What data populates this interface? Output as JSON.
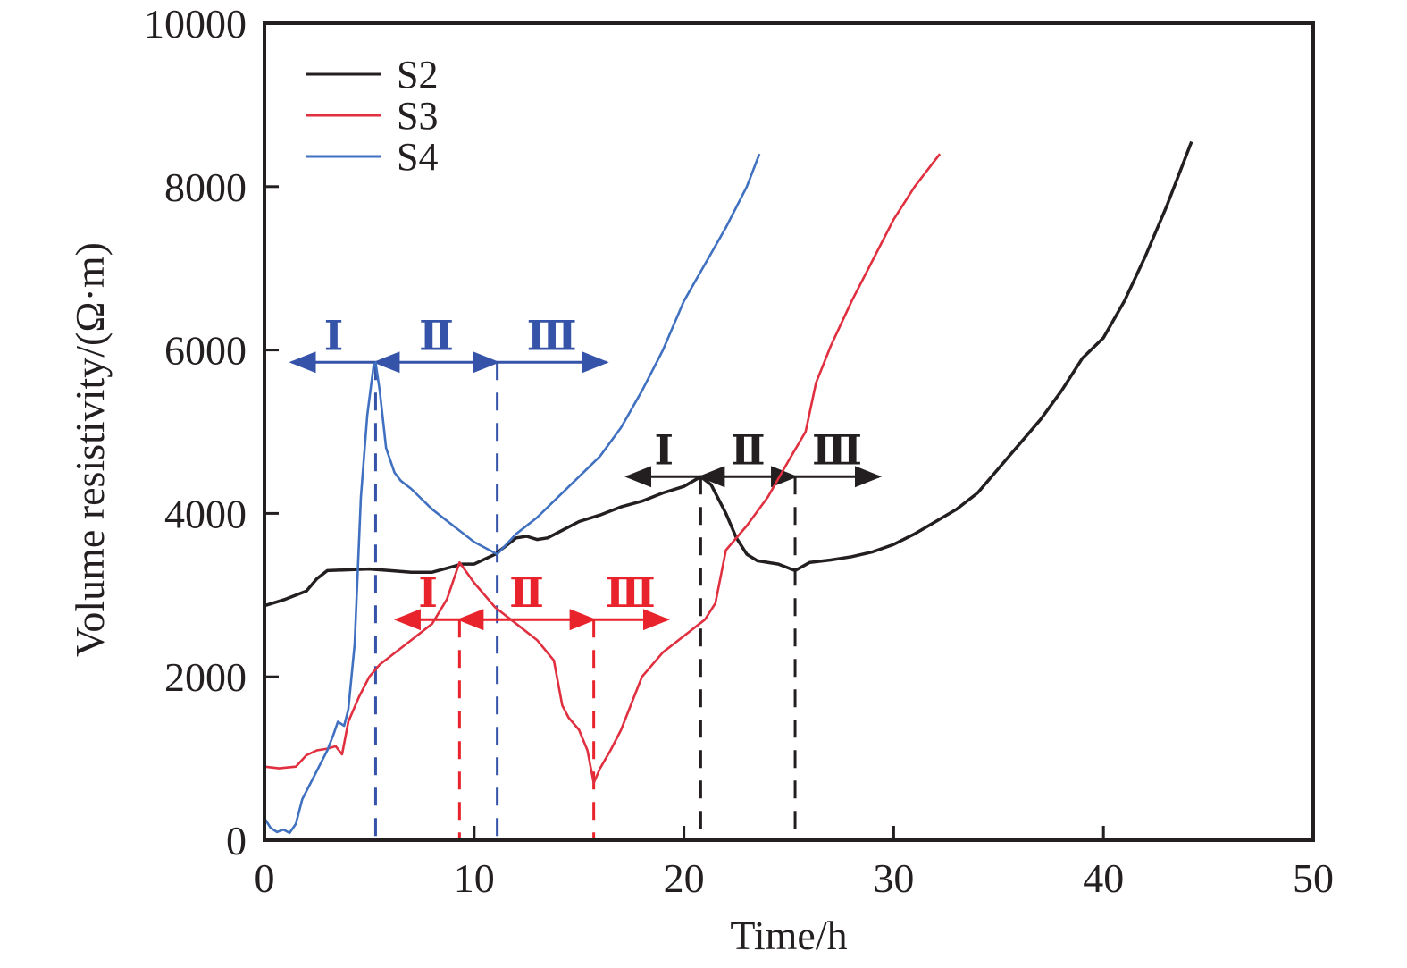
{
  "chart_data": {
    "type": "line",
    "title": "",
    "xlabel": "Time/h",
    "ylabel": "Volume resistivity/(Ω·m)",
    "xlim": [
      0,
      50
    ],
    "ylim": [
      0,
      10000
    ],
    "xticks": [
      0,
      10,
      20,
      30,
      40,
      50
    ],
    "yticks": [
      0,
      2000,
      4000,
      6000,
      8000,
      10000
    ],
    "xtick_labels": [
      "0",
      "10",
      "20",
      "30",
      "40",
      "50"
    ],
    "ytick_labels": [
      "0",
      "2000",
      "4000",
      "6000",
      "8000",
      "10000"
    ],
    "grid": false,
    "legend": {
      "placement": "top-left",
      "entries": [
        "S2",
        "S3",
        "S4"
      ]
    },
    "series": [
      {
        "name": "S2",
        "color": "#231f20",
        "x": [
          0,
          1,
          2,
          2.5,
          3,
          4,
          5,
          6,
          7,
          8,
          9,
          9.4,
          10,
          11,
          12,
          12.5,
          13,
          13.5,
          15,
          16,
          17,
          18,
          19,
          20,
          20.8,
          21.3,
          22,
          22.5,
          23,
          23.5,
          24.5,
          25.3,
          26,
          27,
          28,
          29,
          30,
          31,
          32,
          33,
          34,
          35,
          36,
          37,
          38,
          39,
          40,
          41,
          42,
          43,
          44.2
        ],
        "y": [
          2870,
          2950,
          3050,
          3200,
          3300,
          3310,
          3320,
          3300,
          3280,
          3280,
          3350,
          3380,
          3380,
          3500,
          3700,
          3720,
          3680,
          3700,
          3900,
          3980,
          4080,
          4150,
          4250,
          4330,
          4450,
          4350,
          4000,
          3700,
          3500,
          3420,
          3380,
          3300,
          3400,
          3430,
          3470,
          3530,
          3620,
          3750,
          3900,
          4050,
          4250,
          4550,
          4850,
          5150,
          5500,
          5900,
          6150,
          6600,
          7150,
          7750,
          8550
        ]
      },
      {
        "name": "S3",
        "color": "#e03040",
        "x": [
          0,
          0.7,
          1.5,
          2,
          2.5,
          3,
          3.4,
          3.7,
          4,
          4.5,
          5,
          5.5,
          6,
          7,
          8,
          8.7,
          9.3,
          10,
          11,
          12,
          13,
          13.8,
          14.2,
          14.5,
          15,
          15.4,
          15.7,
          16,
          16.5,
          17,
          18,
          19,
          20,
          21,
          21.5,
          22,
          23,
          24,
          25,
          25.8,
          26.3,
          27,
          28,
          29,
          30,
          31,
          32.2
        ],
        "y": [
          900,
          880,
          900,
          1040,
          1100,
          1120,
          1150,
          1050,
          1450,
          1750,
          2000,
          2150,
          2250,
          2450,
          2650,
          2950,
          3400,
          3150,
          2850,
          2650,
          2450,
          2200,
          1650,
          1500,
          1350,
          1100,
          700,
          880,
          1100,
          1350,
          2000,
          2300,
          2500,
          2700,
          2900,
          3550,
          3850,
          4200,
          4650,
          5000,
          5600,
          6050,
          6600,
          7100,
          7600,
          8000,
          8400
        ]
      },
      {
        "name": "S4",
        "color": "#4070c0",
        "x": [
          0,
          0.3,
          0.6,
          0.9,
          1.2,
          1.5,
          1.8,
          2.2,
          2.7,
          3,
          3.3,
          3.5,
          3.8,
          4,
          4.3,
          4.6,
          4.9,
          5.2,
          5.3,
          5.5,
          5.8,
          6.2,
          6.5,
          7,
          8,
          9,
          10,
          11.1,
          12,
          13,
          14,
          15,
          16,
          17,
          18,
          19,
          20,
          21,
          22,
          23,
          23.6
        ],
        "y": [
          270,
          150,
          100,
          130,
          90,
          200,
          500,
          700,
          950,
          1100,
          1300,
          1450,
          1400,
          1600,
          2400,
          4200,
          5200,
          5800,
          5850,
          5500,
          4800,
          4500,
          4400,
          4300,
          4050,
          3850,
          3650,
          3500,
          3750,
          3950,
          4200,
          4450,
          4700,
          5050,
          5500,
          6000,
          6600,
          7050,
          7500,
          8000,
          8400
        ]
      }
    ],
    "annotations": [
      {
        "series": "S4",
        "color": "#3553a8",
        "boundaries": [
          5.3,
          11.1
        ],
        "arrow_y": 5850,
        "stages": [
          {
            "label": "Ⅰ",
            "from": 1.3,
            "to": 5.3
          },
          {
            "label": "Ⅱ",
            "from": 5.3,
            "to": 11.1
          },
          {
            "label": "Ⅲ",
            "from": 11.1,
            "to": 16.3
          }
        ]
      },
      {
        "series": "S3",
        "color": "#e8232b",
        "boundaries": [
          9.3,
          15.7
        ],
        "arrow_y": 2700,
        "stages": [
          {
            "label": "Ⅰ",
            "from": 6.3,
            "to": 9.3
          },
          {
            "label": "Ⅱ",
            "from": 9.3,
            "to": 15.7
          },
          {
            "label": "Ⅲ",
            "from": 15.7,
            "to": 19.2
          }
        ]
      },
      {
        "series": "S2",
        "color": "#231f20",
        "boundaries": [
          20.8,
          25.3
        ],
        "arrow_y": 4450,
        "stages": [
          {
            "label": "Ⅰ",
            "from": 17.3,
            "to": 20.8
          },
          {
            "label": "Ⅱ",
            "from": 20.8,
            "to": 25.3
          },
          {
            "label": "Ⅲ",
            "from": 25.3,
            "to": 29.3
          }
        ]
      }
    ]
  }
}
